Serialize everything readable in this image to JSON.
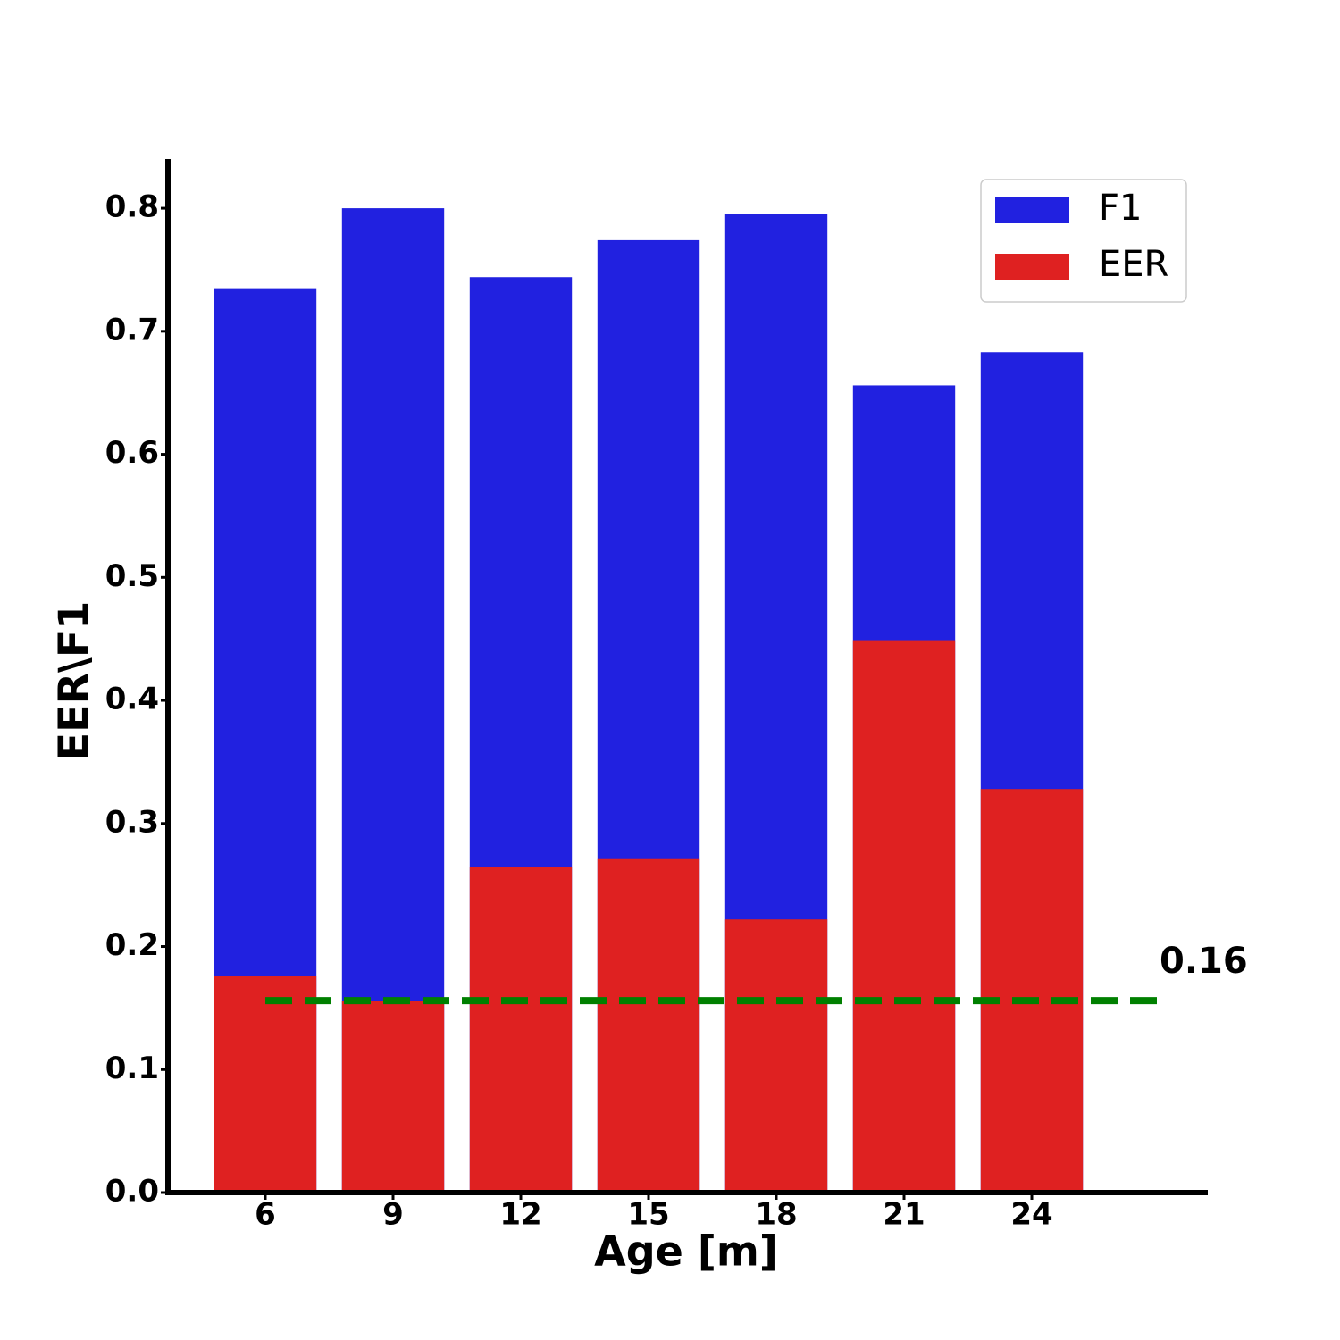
{
  "chart_data": {
    "type": "bar",
    "x_label": "Age [m]",
    "y_label": "EER\\F1",
    "categories": [
      "6",
      "9",
      "12",
      "15",
      "18",
      "21",
      "24"
    ],
    "series": [
      {
        "name": "F1",
        "color": "#2121e0",
        "values": [
          0.735,
          0.8,
          0.744,
          0.774,
          0.795,
          0.656,
          0.683
        ]
      },
      {
        "name": "EER",
        "color": "#df2121",
        "values": [
          0.176,
          0.156,
          0.265,
          0.271,
          0.222,
          0.449,
          0.328
        ]
      }
    ],
    "hline": {
      "value": 0.156,
      "label": "0.16",
      "color": "#008000"
    },
    "ylim": [
      0,
      0.84
    ],
    "yticks": [
      {
        "value": 0,
        "label": "0.0"
      },
      0.1,
      0.2,
      0.3,
      0.4,
      0.5,
      0.6,
      0.7,
      0.8
    ],
    "legend": "upper right"
  }
}
